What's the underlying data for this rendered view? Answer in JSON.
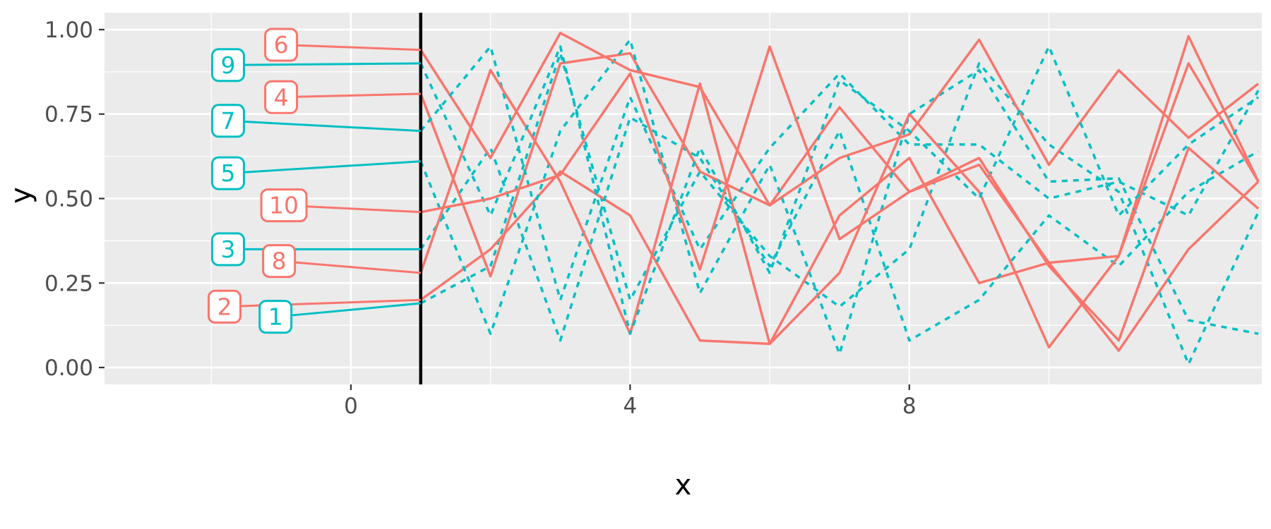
{
  "chart_data": {
    "type": "line",
    "title": "",
    "xlabel": "x",
    "ylabel": "y",
    "xlim": [
      -3.53,
      13.05
    ],
    "ylim": [
      -0.05,
      1.05
    ],
    "xticks": [
      0,
      4,
      8
    ],
    "xtick_labels": [
      "0",
      "4",
      "8"
    ],
    "yticks": [
      0,
      0.25,
      0.5,
      0.75,
      1
    ],
    "ytick_labels": [
      "0.00",
      "0.25",
      "0.50",
      "0.75",
      "1.00"
    ],
    "x_minor": [
      -2,
      2,
      6,
      10
    ],
    "y_minor": [
      0.125,
      0.375,
      0.625,
      0.875
    ],
    "grid": true,
    "legend_position": "none",
    "vline_x": 1,
    "x": [
      1,
      2,
      3,
      4,
      5,
      6,
      7,
      8,
      9,
      10,
      11,
      12,
      13
    ],
    "series": [
      {
        "name": "1",
        "color": "#00BFC4",
        "linetype": "dashed",
        "values": [
          0.19,
          0.3,
          0.93,
          0.2,
          0.58,
          0.33,
          0.18,
          0.35,
          0.9,
          0.66,
          0.52,
          0.01,
          0.46
        ]
      },
      {
        "name": "2",
        "color": "#F8766D",
        "linetype": "solid",
        "values": [
          0.2,
          0.35,
          0.58,
          0.45,
          0.08,
          0.07,
          0.45,
          0.62,
          0.25,
          0.31,
          0.05,
          0.35,
          0.55
        ]
      },
      {
        "name": "3",
        "color": "#00BFC4",
        "linetype": "dashed",
        "values": [
          0.35,
          0.65,
          0.08,
          0.74,
          0.62,
          0.3,
          0.7,
          0.08,
          0.2,
          0.45,
          0.3,
          0.52,
          0.64
        ]
      },
      {
        "name": "4",
        "color": "#F8766D",
        "linetype": "solid",
        "values": [
          0.81,
          0.27,
          0.9,
          0.93,
          0.58,
          0.48,
          0.77,
          0.52,
          0.6,
          0.31,
          0.33,
          0.98,
          0.55
        ]
      },
      {
        "name": "5",
        "color": "#00BFC4",
        "linetype": "dashed",
        "values": [
          0.61,
          0.1,
          0.7,
          0.97,
          0.22,
          0.6,
          0.04,
          0.75,
          0.88,
          0.55,
          0.56,
          0.14,
          0.1
        ]
      },
      {
        "name": "6",
        "color": "#F8766D",
        "linetype": "solid",
        "values": [
          0.94,
          0.62,
          0.99,
          0.88,
          0.83,
          0.48,
          0.62,
          0.69,
          0.97,
          0.6,
          0.88,
          0.68,
          0.84
        ]
      },
      {
        "name": "7",
        "color": "#00BFC4",
        "linetype": "dashed",
        "values": [
          0.7,
          0.95,
          0.2,
          0.8,
          0.35,
          0.65,
          0.87,
          0.66,
          0.66,
          0.5,
          0.55,
          0.45,
          0.82
        ]
      },
      {
        "name": "8",
        "color": "#F8766D",
        "linetype": "solid",
        "values": [
          0.28,
          0.88,
          0.55,
          0.1,
          0.84,
          0.07,
          0.28,
          0.75,
          0.52,
          0.06,
          0.33,
          0.9,
          0.55
        ]
      },
      {
        "name": "9",
        "color": "#00BFC4",
        "linetype": "dashed",
        "values": [
          0.9,
          0.45,
          0.95,
          0.1,
          0.65,
          0.28,
          0.85,
          0.7,
          0.5,
          0.95,
          0.45,
          0.66,
          0.8
        ]
      },
      {
        "name": "10",
        "color": "#F8766D",
        "linetype": "solid",
        "values": [
          0.46,
          0.5,
          0.57,
          0.87,
          0.29,
          0.95,
          0.38,
          0.52,
          0.62,
          0.3,
          0.08,
          0.65,
          0.47
        ]
      }
    ],
    "labels": [
      {
        "text": "6",
        "x": -1.0,
        "y": 0.955,
        "color": "#F8766D"
      },
      {
        "text": "9",
        "x": -1.76,
        "y": 0.895,
        "color": "#00BFC4"
      },
      {
        "text": "4",
        "x": -1.0,
        "y": 0.8,
        "color": "#F8766D"
      },
      {
        "text": "7",
        "x": -1.76,
        "y": 0.73,
        "color": "#00BFC4"
      },
      {
        "text": "5",
        "x": -1.76,
        "y": 0.575,
        "color": "#00BFC4"
      },
      {
        "text": "10",
        "x": -0.96,
        "y": 0.48,
        "color": "#F8766D"
      },
      {
        "text": "3",
        "x": -1.76,
        "y": 0.35,
        "color": "#00BFC4"
      },
      {
        "text": "8",
        "x": -1.03,
        "y": 0.315,
        "color": "#F8766D"
      },
      {
        "text": "2",
        "x": -1.81,
        "y": 0.18,
        "color": "#F8766D"
      },
      {
        "text": "1",
        "x": -1.08,
        "y": 0.15,
        "color": "#00BFC4"
      }
    ],
    "style": {
      "red": "#F8766D",
      "teal": "#00BFC4",
      "panel_bg": "#EBEBEB",
      "grid_color": "#FFFFFF",
      "tick_label_color": "#4D4D4D",
      "tick_mark_color": "#333333",
      "axis_title_color": "#000000",
      "vline_color": "#000000",
      "label_fill": "#FFFFFF"
    }
  }
}
